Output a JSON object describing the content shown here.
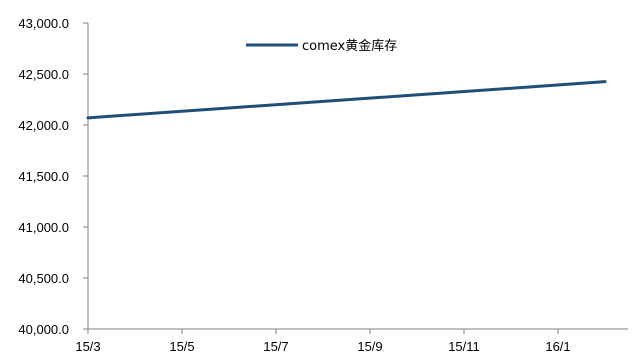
{
  "chart_data": {
    "type": "line",
    "title": "",
    "xlabel": "",
    "ylabel": "",
    "x_ticks": [
      "15/3",
      "15/5",
      "15/7",
      "15/9",
      "15/11",
      "16/1"
    ],
    "y_ticks": [
      "40,000.0",
      "40,500.0",
      "41,000.0",
      "41,500.0",
      "42,000.0",
      "42,500.0",
      "43,000.0"
    ],
    "ylim": [
      40000,
      43000
    ],
    "grid": false,
    "legend_position": "top-center",
    "series": [
      {
        "name": "comex黄金库存",
        "color": "#1f4e79",
        "x": [
          "15/3",
          "16/2"
        ],
        "values": [
          42070,
          42425
        ]
      }
    ]
  }
}
